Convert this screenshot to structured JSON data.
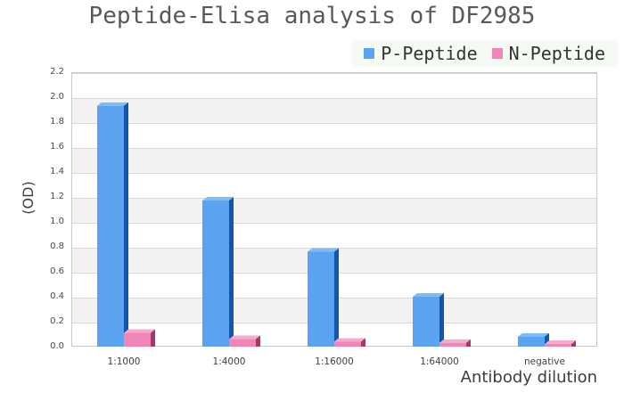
{
  "title": "Peptide-Elisa analysis of DF2985",
  "legend": {
    "items": [
      {
        "label": "P-Peptide",
        "color": "#5ba3f0"
      },
      {
        "label": "N-Peptide",
        "color": "#f086b8"
      }
    ]
  },
  "chart_data": {
    "type": "bar",
    "style": "pseudo-3d",
    "title": "Peptide-Elisa analysis of DF2985",
    "xlabel": "Antibody dilution",
    "ylabel": "(OD)",
    "ylim": [
      0,
      2.2
    ],
    "ytick_step": 0.2,
    "grid": "horizontal-bands",
    "legend_position": "top-right",
    "categories": [
      "1:1000",
      "1:4000",
      "1:16000",
      "1:64000",
      "negative"
    ],
    "series": [
      {
        "name": "P-Peptide",
        "values": [
          1.93,
          1.17,
          0.76,
          0.4,
          0.08
        ],
        "color_front": "#5ba3f0",
        "color_side": "#1256ae",
        "color_top": "#7fbcf7"
      },
      {
        "name": "N-Peptide",
        "values": [
          0.11,
          0.06,
          0.04,
          0.03,
          0.02
        ],
        "color_front": "#f086b8",
        "color_side": "#a8366c",
        "color_top": "#f6aacf"
      }
    ]
  }
}
